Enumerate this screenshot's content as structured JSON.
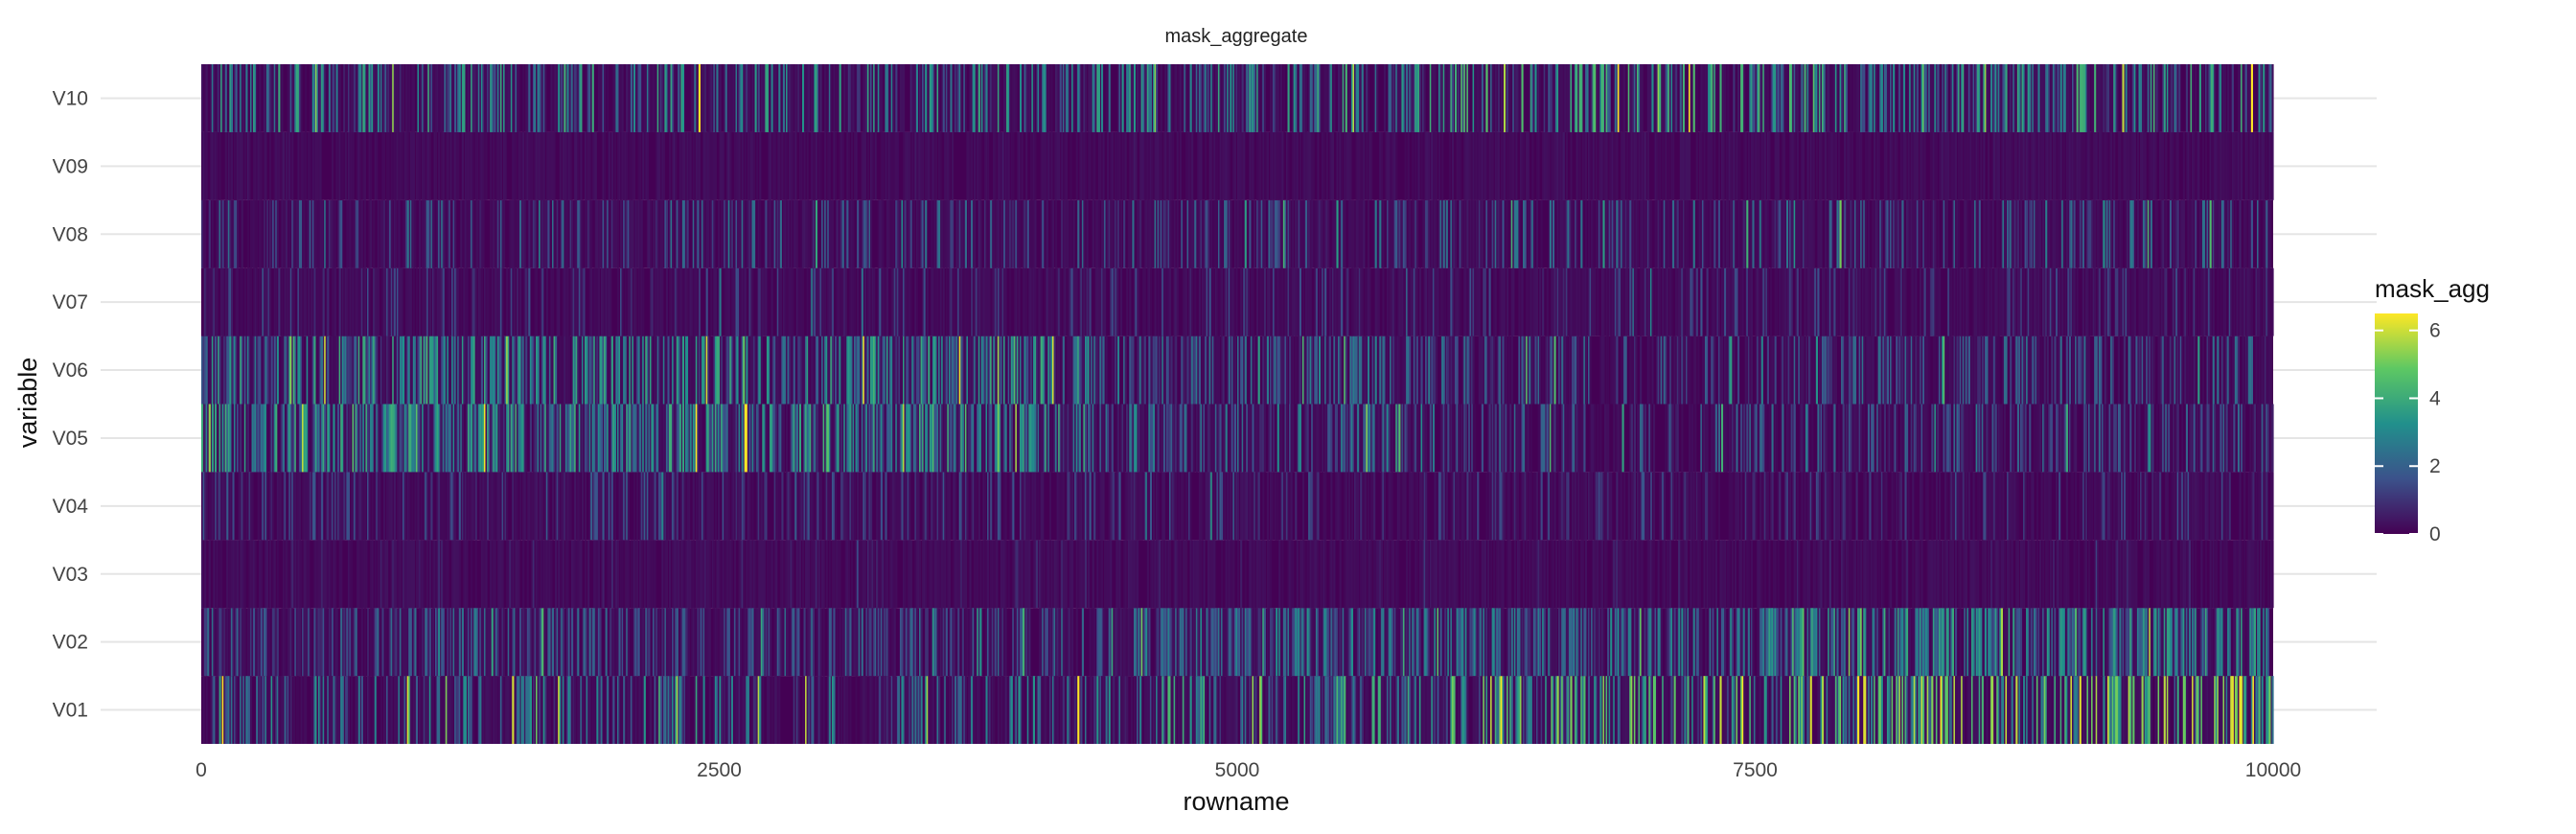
{
  "chart_data": {
    "type": "heatmap",
    "title": "mask_aggregate",
    "xlabel": "rowname",
    "ylabel": "variable",
    "xlim": [
      0,
      10000
    ],
    "x_ticks": [
      0,
      2500,
      5000,
      7500,
      10000
    ],
    "x_tick_labels": [
      "0",
      "2500",
      "5000",
      "7500",
      "10000"
    ],
    "variables": [
      "V01",
      "V02",
      "V03",
      "V04",
      "V05",
      "V06",
      "V07",
      "V08",
      "V09",
      "V10"
    ],
    "n_rows": 10000,
    "color_scale": {
      "name": "viridis",
      "stops": [
        "#440154",
        "#3b528b",
        "#21908c",
        "#5dc863",
        "#fde725"
      ],
      "range": [
        0,
        6.5
      ]
    },
    "legend": {
      "title": "mask_agg",
      "ticks": [
        0,
        2,
        4,
        6
      ],
      "tick_labels": [
        "0",
        "2",
        "4",
        "6"
      ],
      "placement": "right"
    },
    "grid": true,
    "row_profiles": {
      "V01": {
        "segments": [
          [
            0,
            4500,
            0.8
          ],
          [
            4500,
            6000,
            1.8
          ],
          [
            6000,
            8000,
            2.8
          ],
          [
            8000,
            10000,
            3.6
          ]
        ],
        "spread": 2.2,
        "noise": 0.55
      },
      "V02": {
        "segments": [
          [
            0,
            4500,
            0.7
          ],
          [
            4500,
            7500,
            1.6
          ],
          [
            7500,
            10000,
            2.2
          ]
        ],
        "spread": 1.4,
        "noise": 0.45
      },
      "V03": {
        "segments": [
          [
            0,
            10000,
            0.15
          ]
        ],
        "spread": 0.6,
        "noise": 0.9
      },
      "V04": {
        "segments": [
          [
            0,
            5500,
            0.5
          ],
          [
            5500,
            10000,
            0.3
          ]
        ],
        "spread": 1.2,
        "noise": 0.7
      },
      "V05": {
        "segments": [
          [
            0,
            4300,
            2.0
          ],
          [
            4300,
            6000,
            1.0
          ],
          [
            6000,
            10000,
            0.2
          ]
        ],
        "spread": 1.8,
        "noise": 0.4
      },
      "V06": {
        "segments": [
          [
            0,
            4300,
            1.9
          ],
          [
            4300,
            6000,
            0.9
          ],
          [
            6000,
            10000,
            0.3
          ]
        ],
        "spread": 1.8,
        "noise": 0.45
      },
      "V07": {
        "segments": [
          [
            0,
            10000,
            0.45
          ]
        ],
        "spread": 1.0,
        "noise": 0.75
      },
      "V08": {
        "segments": [
          [
            0,
            5000,
            0.6
          ],
          [
            5000,
            10000,
            0.8
          ]
        ],
        "spread": 1.6,
        "noise": 0.65
      },
      "V09": {
        "segments": [
          [
            0,
            10000,
            0.05
          ]
        ],
        "spread": 0.4,
        "noise": 0.95
      },
      "V10": {
        "segments": [
          [
            0,
            6000,
            1.0
          ],
          [
            6000,
            8000,
            1.6
          ],
          [
            8000,
            10000,
            1.2
          ]
        ],
        "spread": 2.6,
        "noise": 0.5
      }
    }
  }
}
